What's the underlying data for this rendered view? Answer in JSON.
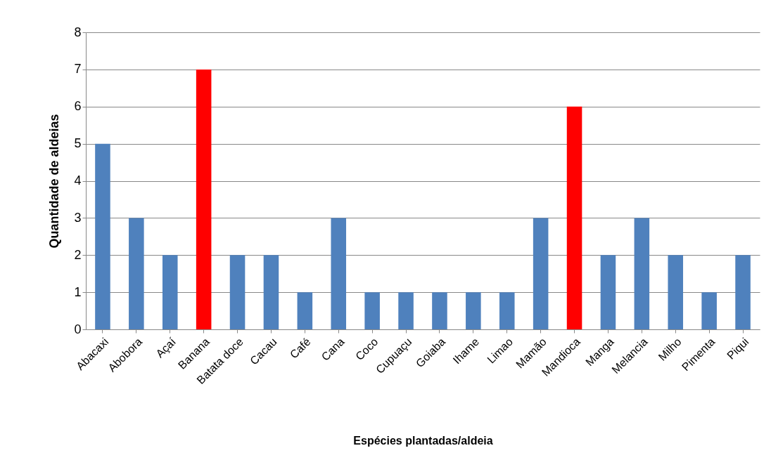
{
  "chart_data": {
    "type": "bar",
    "xlabel": "Espécies plantadas/aldeia",
    "ylabel": "Quantidade de aldeias",
    "categories": [
      "Abacaxi",
      "Abobora",
      "Açaí",
      "Banana",
      "Batata doce",
      "Cacau",
      "Café",
      "Cana",
      "Coco",
      "Cupuaçu",
      "Goiaba",
      "Ihame",
      "Limao",
      "Mamão",
      "Mandioca",
      "Manga",
      "Melancia",
      "Milho",
      "Pimenta",
      "Piqui"
    ],
    "values": [
      5,
      3,
      2,
      7,
      2,
      2,
      1,
      3,
      1,
      1,
      1,
      1,
      1,
      3,
      6,
      2,
      3,
      2,
      1,
      2
    ],
    "colors": [
      "#4f81bd",
      "#4f81bd",
      "#4f81bd",
      "#ff0000",
      "#4f81bd",
      "#4f81bd",
      "#4f81bd",
      "#4f81bd",
      "#4f81bd",
      "#4f81bd",
      "#4f81bd",
      "#4f81bd",
      "#4f81bd",
      "#4f81bd",
      "#ff0000",
      "#4f81bd",
      "#4f81bd",
      "#4f81bd",
      "#4f81bd",
      "#4f81bd"
    ],
    "ylim": [
      0,
      8
    ],
    "yticks": [
      0,
      1,
      2,
      3,
      4,
      5,
      6,
      7,
      8
    ],
    "grid": "y"
  }
}
